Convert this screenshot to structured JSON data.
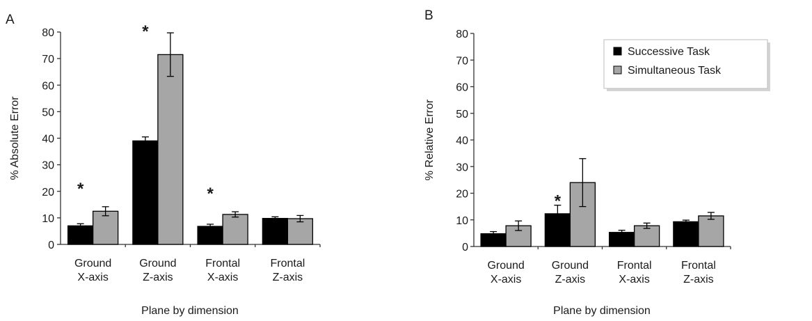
{
  "chart_data": [
    {
      "panel_label": "A",
      "type": "bar",
      "categories": [
        [
          "Ground",
          "X-axis"
        ],
        [
          "Ground",
          "Z-axis"
        ],
        [
          "Frontal",
          "X-axis"
        ],
        [
          "Frontal",
          "Z-axis"
        ]
      ],
      "series": [
        {
          "name": "Successive Task",
          "color": "#000000",
          "values": [
            7,
            39,
            6.8,
            9.8
          ],
          "errors": [
            0.8,
            1.5,
            0.8,
            0.6
          ]
        },
        {
          "name": "Simultaneous Task",
          "color": "#a6a6a6",
          "values": [
            12.5,
            71.5,
            11.3,
            9.7
          ],
          "errors": [
            1.7,
            8.2,
            1.0,
            1.2
          ]
        }
      ],
      "significance": [
        0,
        1,
        2
      ],
      "significance_mark": "*",
      "xlabel": "Plane by dimension",
      "ylabel": "% Absolute Error",
      "ylim": [
        0,
        80
      ],
      "yticks": [
        0,
        10,
        20,
        30,
        40,
        50,
        60,
        70,
        80
      ],
      "legend": null
    },
    {
      "panel_label": "B",
      "type": "bar",
      "categories": [
        [
          "Ground",
          "X-axis"
        ],
        [
          "Ground",
          "Z-axis"
        ],
        [
          "Frontal",
          "X-axis"
        ],
        [
          "Frontal",
          "Z-axis"
        ]
      ],
      "series": [
        {
          "name": "Successive Task",
          "color": "#000000",
          "values": [
            4.8,
            12.3,
            5.3,
            9.3
          ],
          "errors": [
            0.8,
            3.2,
            0.8,
            0.6
          ]
        },
        {
          "name": "Simultaneous Task",
          "color": "#a6a6a6",
          "values": [
            7.8,
            24,
            7.8,
            11.5
          ],
          "errors": [
            1.8,
            9.0,
            1.0,
            1.3
          ]
        }
      ],
      "significance": [
        1
      ],
      "significance_mark": "*",
      "xlabel": "Plane by dimension",
      "ylabel": "% Relative Error",
      "ylim": [
        0,
        80
      ],
      "yticks": [
        0,
        10,
        20,
        30,
        40,
        50,
        60,
        70,
        80
      ],
      "legend": "top-right"
    }
  ]
}
